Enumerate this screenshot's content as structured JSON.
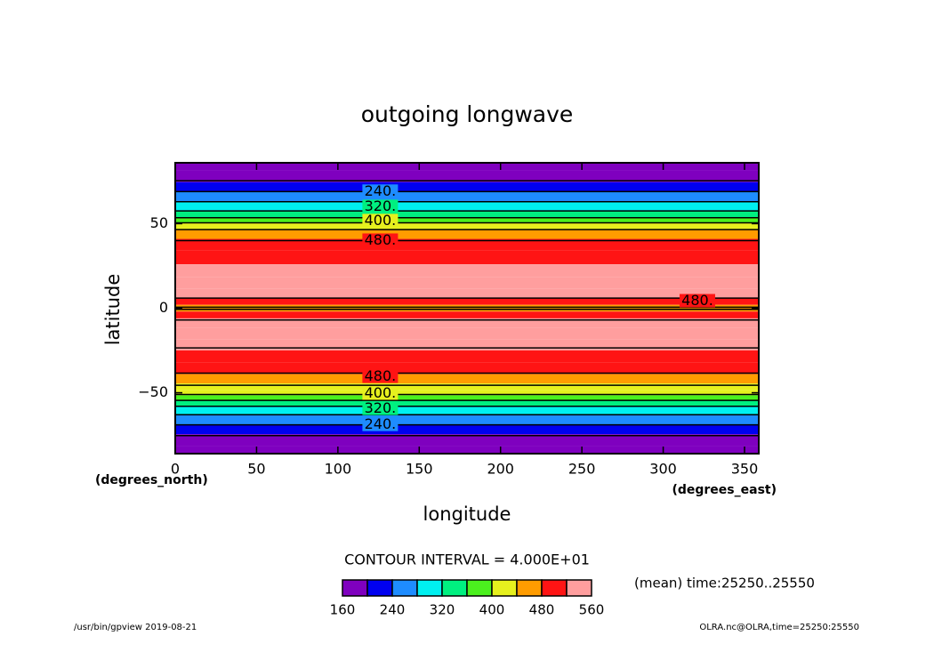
{
  "chart_data": {
    "type": "contour",
    "title": "outgoing longwave",
    "x_label": "longitude",
    "y_label": "latitude",
    "x_unit": "(degrees_east)",
    "y_unit": "(degrees_north)",
    "xlim": [
      0,
      358.75
    ],
    "ylim": [
      -86,
      86
    ],
    "xticks": [
      0,
      50,
      100,
      150,
      200,
      250,
      300,
      350
    ],
    "yticks": [
      {
        "value": -50,
        "label": "−50"
      },
      0,
      50
    ],
    "y": [
      86,
      77,
      72,
      66,
      60,
      55,
      52,
      49,
      44,
      38,
      30,
      22,
      15,
      8,
      4,
      0,
      -4,
      -8,
      -15,
      -22,
      -28,
      -36,
      -42,
      -47,
      -50,
      -53,
      -56,
      -60,
      -66,
      -72,
      -77,
      -86
    ],
    "values": [
      180,
      190,
      220,
      260,
      300,
      340,
      380,
      420,
      460,
      490,
      505,
      520,
      535,
      530,
      510,
      475,
      505,
      525,
      540,
      525,
      505,
      490,
      465,
      430,
      410,
      380,
      340,
      300,
      260,
      220,
      190,
      180
    ],
    "levels": [
      160,
      200,
      240,
      280,
      320,
      360,
      400,
      440,
      480,
      520,
      560
    ],
    "colors": [
      "#7f00bf",
      "#0000f0",
      "#1e8cff",
      "#00f0f0",
      "#00f080",
      "#4bf01e",
      "#e6f01e",
      "#ff9c00",
      "#ff1414",
      "#ff9e9e"
    ],
    "colorbar_ticks": [
      160,
      240,
      320,
      400,
      480,
      560
    ],
    "contour_labels": [
      {
        "label": "240.",
        "value": 240,
        "x": 126,
        "y": 69
      },
      {
        "label": "320.",
        "value": 320,
        "x": 126,
        "y": 60
      },
      {
        "label": "400.",
        "value": 400,
        "x": 126,
        "y": 51.6
      },
      {
        "label": "480.",
        "value": 480,
        "x": 126,
        "y": 40
      },
      {
        "label": "480.",
        "value": 480,
        "x": 126,
        "y": -40.5
      },
      {
        "label": "400.",
        "value": 400,
        "x": 126,
        "y": -50.5
      },
      {
        "label": "320.",
        "value": 320,
        "x": 126,
        "y": -59.5
      },
      {
        "label": "240.",
        "value": 240,
        "x": 126,
        "y": -69
      },
      {
        "label": "480.",
        "value": 480,
        "x": 321,
        "y": 4.2
      }
    ],
    "contour_interval_text": "CONTOUR INTERVAL = 4.000E+01",
    "time_text": "(mean) time:25250..25550",
    "footer_left": "/usr/bin/gpview   2019-08-21",
    "footer_right": "OLRA.nc@OLRA,time=25250:25550"
  }
}
